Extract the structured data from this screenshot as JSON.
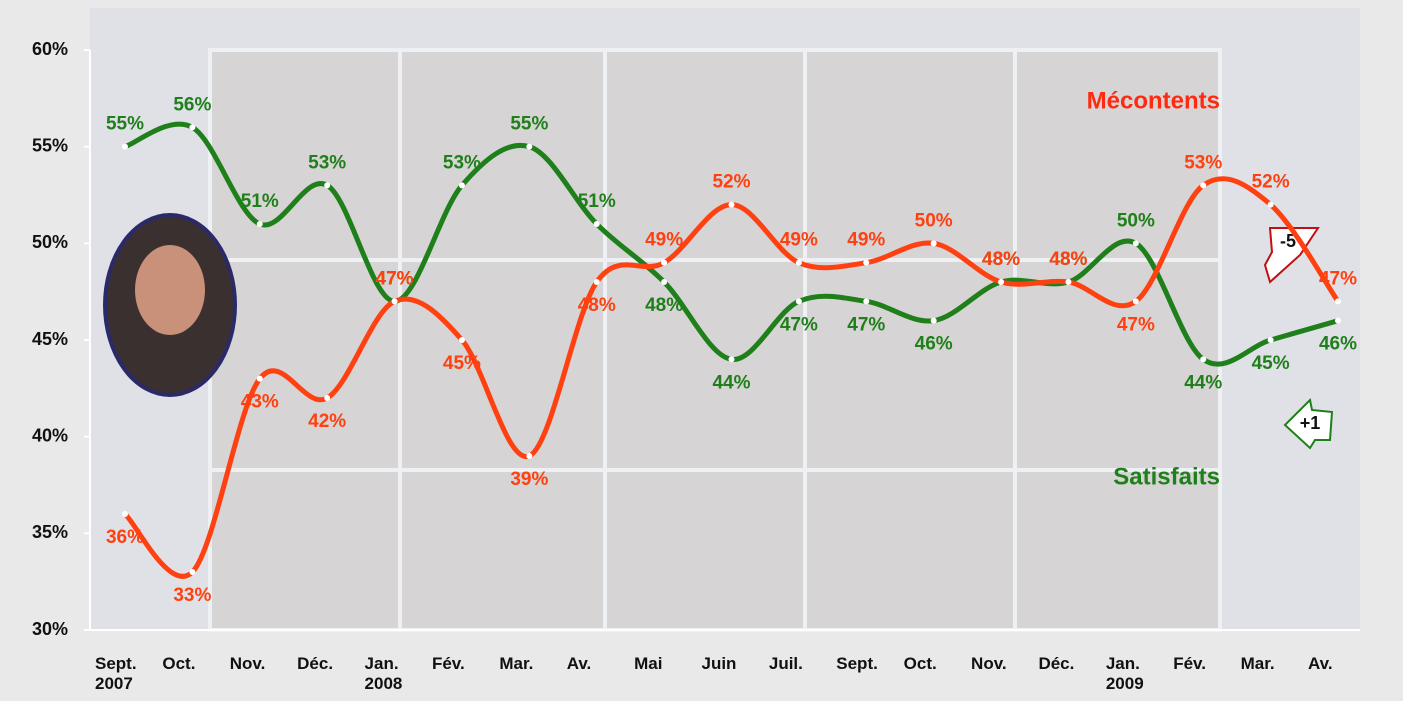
{
  "chart_data": {
    "type": "line",
    "categories": [
      "Sept. 2007",
      "Oct.",
      "Nov.",
      "Déc.",
      "Jan. 2008",
      "Fév.",
      "Mar.",
      "Av.",
      "Mai",
      "Juin",
      "Juil.",
      "Sept.",
      "Oct.",
      "Nov.",
      "Déc.",
      "Jan. 2009",
      "Fév.",
      "Mar.",
      "Av."
    ],
    "series": [
      {
        "name": "Satisfaits",
        "color": "#1f7f1a",
        "values": [
          55,
          56,
          51,
          53,
          47,
          53,
          55,
          51,
          48,
          44,
          47,
          47,
          46,
          48,
          48,
          50,
          44,
          45,
          46
        ],
        "value_labels": [
          "55%",
          "56%",
          "51%",
          "53%",
          "47%",
          "53%",
          "55%",
          "51%",
          "48%",
          "44%",
          "47%",
          "47%",
          "46%",
          "48%",
          "48%",
          "50%",
          "44%",
          "45%",
          "46%"
        ]
      },
      {
        "name": "Mécontents",
        "color": "#ff4010",
        "values": [
          36,
          33,
          43,
          42,
          47,
          45,
          39,
          48,
          49,
          52,
          49,
          49,
          50,
          48,
          48,
          47,
          53,
          52,
          47
        ],
        "value_labels": [
          "36%",
          "33%",
          "43%",
          "42%",
          "47%",
          "45%",
          "39%",
          "48%",
          "49%",
          "52%",
          "49%",
          "49%",
          "50%",
          "48%",
          "48%",
          "47%",
          "53%",
          "52%",
          "47%"
        ]
      }
    ],
    "ylim": [
      30,
      60
    ],
    "yticks": [
      {
        "value": 30,
        "label": "30%"
      },
      {
        "value": 35,
        "label": "35%"
      },
      {
        "value": 40,
        "label": "40%"
      },
      {
        "value": 45,
        "label": "45%"
      },
      {
        "value": 50,
        "label": "50%"
      },
      {
        "value": 55,
        "label": "55%"
      },
      {
        "value": 60,
        "label": "60%"
      }
    ],
    "annotations": [
      "-5",
      "+1"
    ]
  }
}
